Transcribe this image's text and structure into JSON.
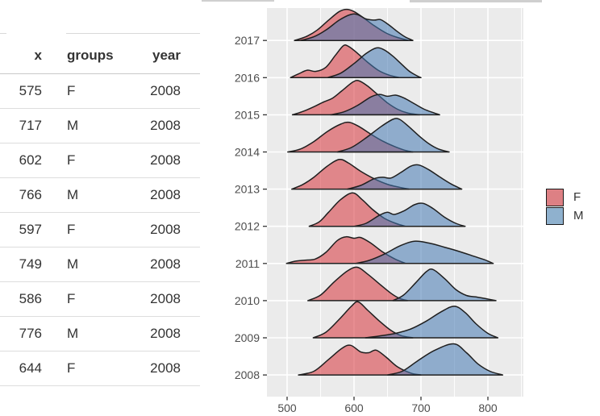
{
  "table": {
    "columns": [
      "x",
      "groups",
      "year"
    ],
    "rows": [
      [
        "575",
        "F",
        "2008"
      ],
      [
        "717",
        "M",
        "2008"
      ],
      [
        "602",
        "F",
        "2008"
      ],
      [
        "766",
        "M",
        "2008"
      ],
      [
        "597",
        "F",
        "2008"
      ],
      [
        "749",
        "M",
        "2008"
      ],
      [
        "586",
        "F",
        "2008"
      ],
      [
        "776",
        "M",
        "2008"
      ],
      [
        "644",
        "F",
        "2008"
      ]
    ]
  },
  "legend": {
    "items": [
      {
        "label": "F",
        "swatch": "#DD8084"
      },
      {
        "label": "M",
        "swatch": "#8FB1CE"
      }
    ]
  },
  "chart_data": {
    "type": "ridgeline",
    "title": "",
    "xlabel": "",
    "ylabel": "",
    "x_ticks": [
      500,
      600,
      700,
      800
    ],
    "x_minor_ticks": [
      550,
      650,
      750,
      850
    ],
    "x_range": [
      470,
      853
    ],
    "years": [
      "2008",
      "2009",
      "2010",
      "2011",
      "2012",
      "2013",
      "2014",
      "2015",
      "2016",
      "2017"
    ],
    "groups": [
      {
        "name": "F",
        "fill": "#D7333A"
      },
      {
        "name": "M",
        "fill": "#4479B2"
      }
    ],
    "fill_opacity": 0.55,
    "stroke_color": "#1f1f1f",
    "panel_bg": "#EBEBEB",
    "grid_color": "#FFFFFF",
    "densities": {
      "2008": {
        "F": [
          [
            517,
            0
          ],
          [
            540,
            0.1
          ],
          [
            562,
            0.42
          ],
          [
            582,
            0.72
          ],
          [
            595,
            0.8
          ],
          [
            610,
            0.62
          ],
          [
            622,
            0.6
          ],
          [
            633,
            0.67
          ],
          [
            648,
            0.48
          ],
          [
            665,
            0.22
          ],
          [
            685,
            0.05
          ],
          [
            700,
            0
          ]
        ],
        "M": [
          [
            650,
            0
          ],
          [
            672,
            0.1
          ],
          [
            695,
            0.38
          ],
          [
            720,
            0.66
          ],
          [
            749,
            0.84
          ],
          [
            768,
            0.6
          ],
          [
            785,
            0.3
          ],
          [
            803,
            0.1
          ],
          [
            822,
            0
          ]
        ]
      },
      "2009": {
        "F": [
          [
            539,
            0
          ],
          [
            558,
            0.15
          ],
          [
            578,
            0.5
          ],
          [
            596,
            0.85
          ],
          [
            606,
            0.97
          ],
          [
            620,
            0.75
          ],
          [
            638,
            0.45
          ],
          [
            655,
            0.2
          ],
          [
            670,
            0.06
          ],
          [
            688,
            0
          ]
        ],
        "M": [
          [
            617,
            0
          ],
          [
            638,
            0.05
          ],
          [
            662,
            0.12
          ],
          [
            685,
            0.24
          ],
          [
            708,
            0.45
          ],
          [
            730,
            0.7
          ],
          [
            750,
            0.85
          ],
          [
            766,
            0.68
          ],
          [
            782,
            0.38
          ],
          [
            800,
            0.12
          ],
          [
            815,
            0
          ]
        ]
      },
      "2010": {
        "F": [
          [
            531,
            0
          ],
          [
            550,
            0.15
          ],
          [
            570,
            0.5
          ],
          [
            590,
            0.8
          ],
          [
            605,
            0.9
          ],
          [
            620,
            0.72
          ],
          [
            638,
            0.45
          ],
          [
            655,
            0.2
          ],
          [
            668,
            0.06
          ],
          [
            680,
            0
          ]
        ],
        "M": [
          [
            658,
            0
          ],
          [
            674,
            0.15
          ],
          [
            692,
            0.48
          ],
          [
            708,
            0.78
          ],
          [
            718,
            0.84
          ],
          [
            735,
            0.6
          ],
          [
            752,
            0.3
          ],
          [
            768,
            0.14
          ],
          [
            782,
            0.1
          ],
          [
            798,
            0.05
          ],
          [
            812,
            0
          ]
        ]
      },
      "2011": {
        "F": [
          [
            499,
            0
          ],
          [
            512,
            0.06
          ],
          [
            527,
            0.09
          ],
          [
            542,
            0.12
          ],
          [
            558,
            0.3
          ],
          [
            575,
            0.62
          ],
          [
            588,
            0.72
          ],
          [
            600,
            0.68
          ],
          [
            610,
            0.7
          ],
          [
            625,
            0.55
          ],
          [
            642,
            0.32
          ],
          [
            660,
            0.13
          ],
          [
            677,
            0
          ]
        ],
        "M": [
          [
            602,
            0
          ],
          [
            622,
            0.08
          ],
          [
            645,
            0.25
          ],
          [
            668,
            0.47
          ],
          [
            690,
            0.6
          ],
          [
            712,
            0.55
          ],
          [
            735,
            0.44
          ],
          [
            758,
            0.32
          ],
          [
            778,
            0.2
          ],
          [
            795,
            0.1
          ],
          [
            808,
            0
          ]
        ]
      },
      "2012": {
        "F": [
          [
            533,
            0
          ],
          [
            548,
            0.12
          ],
          [
            562,
            0.38
          ],
          [
            580,
            0.72
          ],
          [
            598,
            0.9
          ],
          [
            612,
            0.72
          ],
          [
            628,
            0.45
          ],
          [
            645,
            0.22
          ],
          [
            662,
            0.08
          ],
          [
            677,
            0
          ]
        ],
        "M": [
          [
            600,
            0
          ],
          [
            618,
            0.08
          ],
          [
            638,
            0.3
          ],
          [
            650,
            0.38
          ],
          [
            660,
            0.32
          ],
          [
            675,
            0.42
          ],
          [
            690,
            0.58
          ],
          [
            703,
            0.62
          ],
          [
            718,
            0.48
          ],
          [
            735,
            0.25
          ],
          [
            752,
            0.08
          ],
          [
            766,
            0
          ]
        ]
      },
      "2013": {
        "F": [
          [
            507,
            0
          ],
          [
            523,
            0.12
          ],
          [
            540,
            0.32
          ],
          [
            560,
            0.62
          ],
          [
            578,
            0.8
          ],
          [
            592,
            0.7
          ],
          [
            610,
            0.48
          ],
          [
            630,
            0.28
          ],
          [
            650,
            0.13
          ],
          [
            668,
            0.05
          ],
          [
            682,
            0
          ]
        ],
        "M": [
          [
            590,
            0
          ],
          [
            610,
            0.1
          ],
          [
            630,
            0.28
          ],
          [
            643,
            0.32
          ],
          [
            655,
            0.3
          ],
          [
            670,
            0.45
          ],
          [
            685,
            0.62
          ],
          [
            697,
            0.65
          ],
          [
            712,
            0.52
          ],
          [
            728,
            0.33
          ],
          [
            745,
            0.14
          ],
          [
            761,
            0
          ]
        ]
      },
      "2014": {
        "F": [
          [
            501,
            0
          ],
          [
            520,
            0.08
          ],
          [
            540,
            0.28
          ],
          [
            560,
            0.55
          ],
          [
            580,
            0.75
          ],
          [
            593,
            0.8
          ],
          [
            608,
            0.68
          ],
          [
            625,
            0.48
          ],
          [
            642,
            0.3
          ],
          [
            660,
            0.15
          ],
          [
            675,
            0.05
          ],
          [
            688,
            0
          ]
        ],
        "M": [
          [
            575,
            0
          ],
          [
            596,
            0.12
          ],
          [
            618,
            0.38
          ],
          [
            640,
            0.68
          ],
          [
            658,
            0.88
          ],
          [
            668,
            0.88
          ],
          [
            682,
            0.68
          ],
          [
            698,
            0.42
          ],
          [
            712,
            0.22
          ],
          [
            726,
            0.08
          ],
          [
            742,
            0
          ]
        ]
      },
      "2015": {
        "F": [
          [
            508,
            0
          ],
          [
            522,
            0.08
          ],
          [
            538,
            0.2
          ],
          [
            555,
            0.35
          ],
          [
            568,
            0.45
          ],
          [
            582,
            0.65
          ],
          [
            598,
            0.88
          ],
          [
            607,
            0.92
          ],
          [
            620,
            0.78
          ],
          [
            635,
            0.55
          ],
          [
            650,
            0.32
          ],
          [
            665,
            0.15
          ],
          [
            680,
            0.05
          ],
          [
            698,
            0
          ]
        ],
        "M": [
          [
            565,
            0
          ],
          [
            585,
            0.08
          ],
          [
            605,
            0.25
          ],
          [
            625,
            0.48
          ],
          [
            638,
            0.55
          ],
          [
            650,
            0.5
          ],
          [
            662,
            0.53
          ],
          [
            675,
            0.45
          ],
          [
            690,
            0.3
          ],
          [
            705,
            0.15
          ],
          [
            718,
            0.06
          ],
          [
            728,
            0
          ]
        ]
      },
      "2016": {
        "F": [
          [
            505,
            0
          ],
          [
            517,
            0.1
          ],
          [
            530,
            0.2
          ],
          [
            543,
            0.17
          ],
          [
            558,
            0.28
          ],
          [
            572,
            0.6
          ],
          [
            584,
            0.86
          ],
          [
            592,
            0.84
          ],
          [
            605,
            0.66
          ],
          [
            620,
            0.42
          ],
          [
            636,
            0.2
          ],
          [
            652,
            0.07
          ],
          [
            668,
            0
          ]
        ],
        "M": [
          [
            560,
            0
          ],
          [
            580,
            0.12
          ],
          [
            600,
            0.38
          ],
          [
            618,
            0.65
          ],
          [
            633,
            0.8
          ],
          [
            645,
            0.75
          ],
          [
            658,
            0.58
          ],
          [
            670,
            0.38
          ],
          [
            682,
            0.18
          ],
          [
            692,
            0.07
          ],
          [
            700,
            0
          ]
        ]
      },
      "2017": {
        "F": [
          [
            511,
            0
          ],
          [
            528,
            0.1
          ],
          [
            545,
            0.28
          ],
          [
            562,
            0.55
          ],
          [
            578,
            0.78
          ],
          [
            589,
            0.84
          ],
          [
            600,
            0.78
          ],
          [
            615,
            0.6
          ],
          [
            630,
            0.4
          ],
          [
            648,
            0.2
          ],
          [
            665,
            0.08
          ],
          [
            682,
            0
          ]
        ],
        "M": [
          [
            520,
            0
          ],
          [
            540,
            0.1
          ],
          [
            558,
            0.28
          ],
          [
            578,
            0.55
          ],
          [
            595,
            0.7
          ],
          [
            605,
            0.7
          ],
          [
            618,
            0.58
          ],
          [
            630,
            0.55
          ],
          [
            640,
            0.56
          ],
          [
            652,
            0.42
          ],
          [
            664,
            0.25
          ],
          [
            676,
            0.1
          ],
          [
            688,
            0
          ]
        ]
      }
    }
  }
}
